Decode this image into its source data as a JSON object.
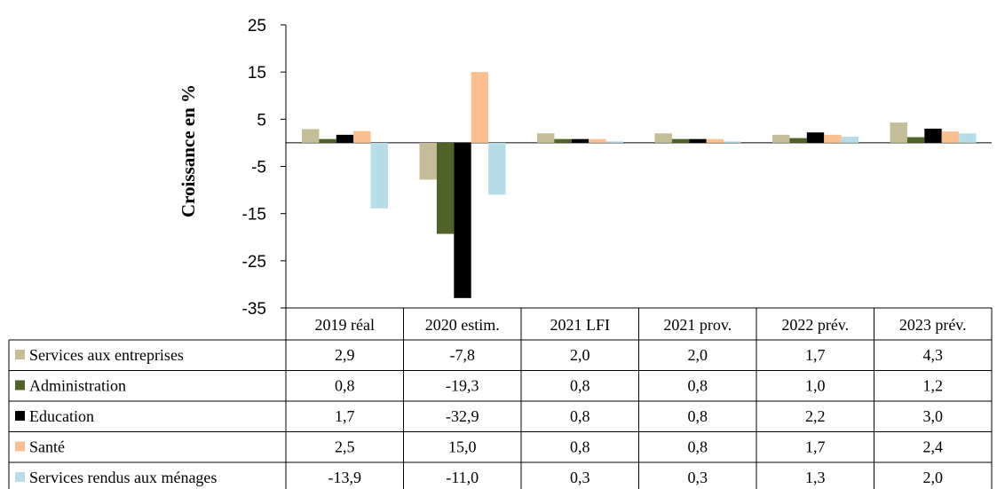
{
  "chart_data": {
    "type": "bar",
    "ylabel": "Croissance en %",
    "ylim": [
      -35,
      25
    ],
    "yticks": [
      25,
      15,
      5,
      -5,
      -15,
      -25,
      -35
    ],
    "grid": false,
    "legend": "data-table",
    "categories": [
      "2019 réal",
      "2020 estim.",
      "2021 LFI",
      "2021 prov.",
      "2022 prév.",
      "2023 prév."
    ],
    "series": [
      {
        "name": "Services aux entreprises",
        "color": "#c4bd97",
        "values": [
          2.9,
          -7.8,
          2.0,
          2.0,
          1.7,
          4.3
        ],
        "labels": [
          "2,9",
          "-7,8",
          "2,0",
          "2,0",
          "1,7",
          "4,3"
        ]
      },
      {
        "name": "Administration",
        "color": "#4f6228",
        "values": [
          0.8,
          -19.3,
          0.8,
          0.8,
          1.0,
          1.2
        ],
        "labels": [
          "0,8",
          "-19,3",
          "0,8",
          "0,8",
          "1,0",
          "1,2"
        ]
      },
      {
        "name": "Education",
        "color": "#000000",
        "values": [
          1.7,
          -32.9,
          0.8,
          0.8,
          2.2,
          3.0
        ],
        "labels": [
          "1,7",
          "-32,9",
          "0,8",
          "0,8",
          "2,2",
          "3,0"
        ]
      },
      {
        "name": "Santé",
        "color": "#fac090",
        "values": [
          2.5,
          15.0,
          0.8,
          0.8,
          1.7,
          2.4
        ],
        "labels": [
          "2,5",
          "15,0",
          "0,8",
          "0,8",
          "1,7",
          "2,4"
        ]
      },
      {
        "name": "Services rendus aux ménages",
        "color": "#b7dee8",
        "values": [
          -13.9,
          -11.0,
          0.3,
          0.3,
          1.3,
          2.0
        ],
        "labels": [
          "-13,9",
          "-11,0",
          "0,3",
          "0,3",
          "1,3",
          "2,0"
        ]
      }
    ]
  }
}
